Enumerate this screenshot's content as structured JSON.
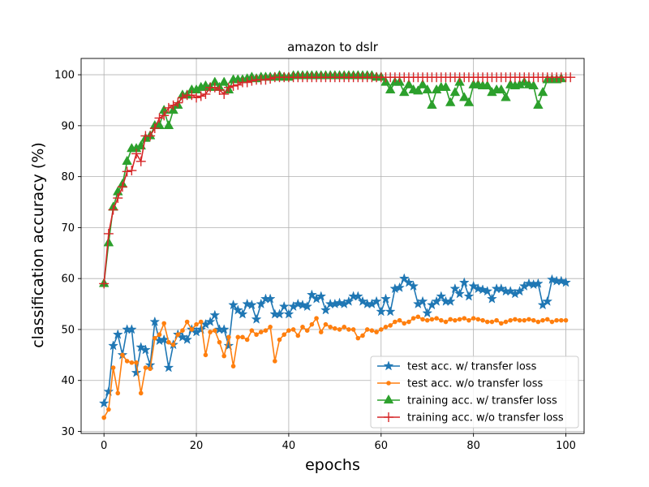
{
  "chart_data": {
    "type": "line",
    "title": "amazon to dslr",
    "xlabel": "epochs",
    "ylabel": "classification accuracy (%)",
    "xlim": [
      -4.95,
      103.95
    ],
    "ylim": [
      29.6,
      103.2
    ],
    "xticks": [
      0,
      20,
      40,
      60,
      80,
      100
    ],
    "yticks": [
      30,
      40,
      50,
      60,
      70,
      80,
      90,
      100
    ],
    "grid": true,
    "legend_position": "lower-right",
    "series": [
      {
        "name": "test acc. w/ transfer loss",
        "color": "#1f77b4",
        "marker": "star",
        "values": [
          35.5,
          37.8,
          46.8,
          49.0,
          45.0,
          50.0,
          50.0,
          41.5,
          46.5,
          46.0,
          43.0,
          51.5,
          47.8,
          48.0,
          42.5,
          47.0,
          49.0,
          48.5,
          48.0,
          50.0,
          49.5,
          50.0,
          51.0,
          51.5,
          52.8,
          50.0,
          50.0,
          46.8,
          54.8,
          53.8,
          53.0,
          55.0,
          54.8,
          52.0,
          55.0,
          56.0,
          56.0,
          53.0,
          53.0,
          54.5,
          53.0,
          54.5,
          55.0,
          54.8,
          54.5,
          56.8,
          56.0,
          56.5,
          53.8,
          55.0,
          55.0,
          55.2,
          55.0,
          55.5,
          56.5,
          56.5,
          55.5,
          55.0,
          55.0,
          55.5,
          53.5,
          56.0,
          53.5,
          58.0,
          58.2,
          60.0,
          59.2,
          58.5,
          55.0,
          55.5,
          53.2,
          54.8,
          55.5,
          56.5,
          55.5,
          55.5,
          58.0,
          57.0,
          59.2,
          56.5,
          58.5,
          58.0,
          57.8,
          57.5,
          56.0,
          58.0,
          58.0,
          57.5,
          57.5,
          57.0,
          57.5,
          58.5,
          59.0,
          58.8,
          59.0,
          54.8,
          55.5,
          59.8,
          59.5,
          59.5,
          59.2
        ]
      },
      {
        "name": "test acc. w/o transfer loss",
        "color": "#ff7f0e",
        "marker": "circle",
        "values": [
          32.7,
          34.3,
          42.5,
          37.5,
          45.0,
          43.8,
          43.5,
          43.5,
          37.5,
          42.5,
          42.3,
          48.3,
          49.0,
          51.2,
          47.5,
          47.0,
          49.0,
          49.8,
          51.5,
          50.0,
          51.0,
          51.5,
          45.0,
          49.5,
          49.8,
          47.5,
          44.8,
          48.5,
          42.8,
          48.5,
          48.5,
          48.0,
          49.8,
          49.0,
          49.5,
          49.8,
          50.5,
          43.8,
          48.0,
          49.0,
          49.8,
          50.0,
          48.8,
          50.5,
          49.8,
          51.0,
          52.2,
          49.5,
          51.0,
          50.5,
          50.2,
          50.0,
          50.5,
          50.0,
          50.0,
          48.3,
          48.8,
          50.0,
          49.8,
          49.5,
          50.0,
          50.5,
          50.8,
          51.5,
          51.8,
          51.2,
          51.5,
          52.2,
          52.5,
          52.0,
          51.8,
          52.0,
          52.2,
          51.8,
          51.5,
          52.0,
          51.8,
          52.0,
          52.2,
          51.8,
          52.2,
          52.0,
          51.8,
          51.5,
          51.5,
          51.8,
          51.2,
          51.5,
          51.8,
          52.0,
          51.8,
          51.8,
          52.0,
          51.8,
          51.5,
          51.8,
          52.0,
          51.5,
          51.8,
          51.8,
          51.8
        ]
      },
      {
        "name": "training acc. w/ transfer loss",
        "color": "#2ca02c",
        "marker": "triangle",
        "values": [
          59.0,
          67.0,
          74.0,
          77.0,
          78.5,
          83.0,
          85.5,
          85.5,
          86.0,
          87.5,
          88.0,
          90.0,
          90.0,
          93.0,
          90.0,
          93.0,
          94.0,
          96.0,
          96.0,
          97.0,
          97.0,
          97.5,
          97.8,
          97.5,
          98.5,
          97.5,
          98.5,
          97.0,
          99.0,
          99.0,
          99.0,
          99.2,
          99.5,
          99.2,
          99.5,
          99.5,
          99.5,
          99.5,
          99.8,
          99.5,
          99.5,
          99.8,
          99.8,
          99.8,
          99.8,
          99.8,
          99.8,
          99.8,
          99.8,
          99.8,
          99.8,
          99.8,
          99.8,
          99.8,
          99.8,
          99.8,
          99.8,
          99.8,
          99.8,
          99.5,
          99.5,
          98.5,
          97.0,
          98.5,
          98.5,
          96.5,
          98.0,
          97.0,
          96.8,
          98.0,
          97.0,
          94.0,
          97.0,
          97.5,
          97.5,
          94.5,
          96.5,
          98.5,
          95.5,
          94.5,
          98.0,
          98.0,
          97.8,
          97.8,
          96.5,
          97.0,
          97.0,
          95.5,
          98.0,
          97.8,
          98.0,
          98.5,
          98.0,
          97.8,
          94.0,
          96.5,
          99.0,
          99.0,
          99.0,
          99.2
        ]
      },
      {
        "name": "training acc. w/o transfer loss",
        "color": "#d62728",
        "marker": "plus",
        "values": [
          59.0,
          68.8,
          73.5,
          75.8,
          78.0,
          81.0,
          81.2,
          84.5,
          83.0,
          88.0,
          88.0,
          89.5,
          91.5,
          92.0,
          93.5,
          94.0,
          94.5,
          95.5,
          96.0,
          96.0,
          95.5,
          95.8,
          96.2,
          97.5,
          97.5,
          97.0,
          96.2,
          97.5,
          97.8,
          98.0,
          98.5,
          98.5,
          98.8,
          99.0,
          99.0,
          99.0,
          99.2,
          99.5,
          99.5,
          99.5,
          99.5,
          99.5,
          99.5,
          99.5,
          99.5,
          99.5,
          99.5,
          99.5,
          99.5,
          99.5,
          99.5,
          99.5,
          99.5,
          99.5,
          99.5,
          99.5,
          99.5,
          99.5,
          99.5,
          99.5,
          99.5,
          99.5,
          99.5,
          99.5,
          99.5,
          99.5,
          99.5,
          99.5,
          99.5,
          99.5,
          99.5,
          99.5,
          99.5,
          99.5,
          99.5,
          99.5,
          99.5,
          99.5,
          99.5,
          99.5,
          99.5,
          99.5,
          99.5,
          99.5,
          99.5,
          99.5,
          99.5,
          99.5,
          99.5,
          99.5,
          99.5,
          99.5,
          99.5,
          99.5,
          99.5,
          99.5,
          99.5,
          99.5,
          99.5,
          99.5,
          99.5,
          99.5
        ]
      }
    ]
  }
}
